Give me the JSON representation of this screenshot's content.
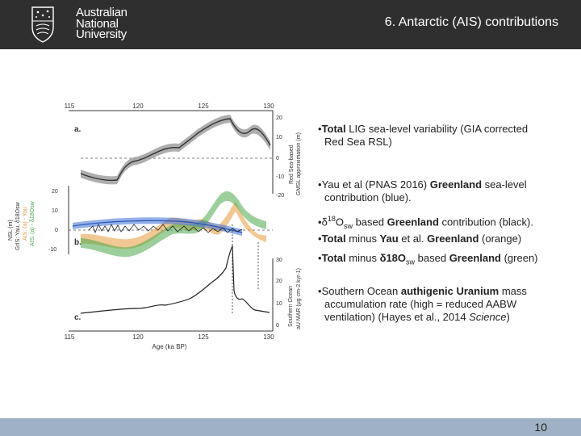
{
  "header": {
    "university_lines": [
      "Australian",
      "National",
      "University"
    ],
    "title": "6. Antarctic (AIS) contributions"
  },
  "figure": {
    "top_axis_ticks": [
      "115",
      "120",
      "125",
      "130"
    ],
    "bottom_axis_ticks": [
      "115",
      "120",
      "125",
      "130"
    ],
    "xlabel": "Age (ka BP)",
    "panel_labels": [
      "a.",
      "b.",
      "c."
    ],
    "right_ticks_a": [
      "20",
      "10",
      "0",
      "-10",
      "-20"
    ],
    "right_label_a_line1": "Red Sea-based",
    "right_label_a_line2": "GMSL approximation (m)",
    "left_ticks_b": [
      "20",
      "10",
      "0",
      "-10"
    ],
    "left_label_b_1": "NSL (m)",
    "left_label_b_2": "GrIS: Yau, δ18Osw",
    "left_label_b_3": "AIS: (a) - Yau",
    "left_label_b_4": "AIS: (a) - δ18Osw",
    "right_ticks_c": [
      "30",
      "20",
      "10",
      "0"
    ],
    "right_label_c_line1": "Southern Ocean",
    "right_label_c_line2": "aU MAR (μg cm-2 kyr-1)"
  },
  "bullets": {
    "b1_bold": "Total",
    "b1_text": " LIG sea-level variability (GIA corrected",
    "b1_line2": "Red Sea RSL)",
    "b2_text1": "Yau et al (PNAS 2016) ",
    "b2_bold": "Greenland",
    "b2_text2": " sea-level",
    "b2_line2": "contribution (blue).",
    "b3_text1": "δ",
    "b3_sup": "18",
    "b3_text2": "O",
    "b3_sub": "sw",
    "b3_text3": " based ",
    "b3_bold": "Greenland",
    "b3_text4": " contribution (black).",
    "b4_bold1": "Total",
    "b4_text1": " minus ",
    "b4_bold2": "Yau",
    "b4_text2": " et al. ",
    "b4_bold3": "Greenland",
    "b4_text3": " (orange)",
    "b5_bold1": "Total",
    "b5_text1": " minus ",
    "b5_bold2": "δ18O",
    "b5_sub": "sw",
    "b5_text2": " based ",
    "b5_bold3": "Greenland",
    "b5_text3": " (green)",
    "b6_text1": "Southern Ocean ",
    "b6_bold": "authigenic Uranium",
    "b6_text2": " mass",
    "b6_line2": "accumulation rate (high = reduced AABW",
    "b6_line3_a": "ventilation) (Hayes et al., 2014 ",
    "b6_line3_italic": "Science",
    "b6_line3_b": ")"
  },
  "footer": {
    "page_number": "10"
  },
  "colors": {
    "header_bg": "#2f2f2f",
    "footer_bg": "#9fb2c5",
    "blue": "#3a6fd8",
    "green": "#4aa84a",
    "orange": "#e69a3a"
  }
}
